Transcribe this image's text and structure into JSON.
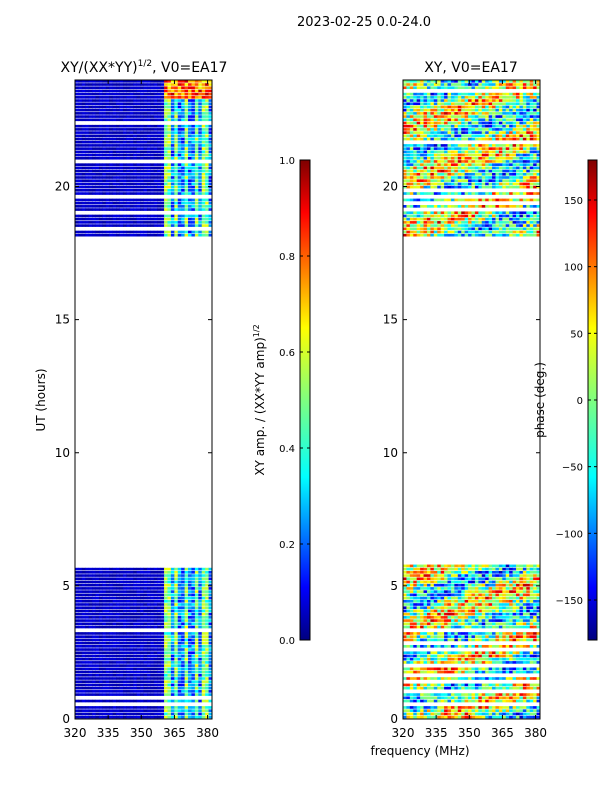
{
  "figure_title": "2023-02-25 0.0-24.0",
  "colors": {
    "jet": [
      "#00007f",
      "#0000ff",
      "#007fff",
      "#00ffff",
      "#7fff7f",
      "#ffff00",
      "#ff7f00",
      "#ff0000",
      "#7f0000"
    ]
  },
  "chart_data": [
    {
      "type": "heatmap",
      "title_main": "XY/(XX*YY)",
      "title_sup": "1/2",
      "title_rest": ", V0=EA17",
      "xlabel": "",
      "ylabel": "UT (hours)",
      "xlim": [
        320,
        382
      ],
      "ylim": [
        0,
        24
      ],
      "xticks": [
        "320",
        "335",
        "350",
        "365",
        "380"
      ],
      "xtick_values": [
        320,
        335,
        350,
        365,
        380
      ],
      "yticks": [
        "0",
        "5",
        "10",
        "15",
        "20"
      ],
      "ytick_values": [
        0,
        5,
        10,
        15,
        20
      ],
      "data_ranges_ut": [
        [
          0,
          5.8
        ],
        [
          18.1,
          24
        ]
      ],
      "colorbar": {
        "label_main": "XY amp. / (XX*YY amp)",
        "label_sup": "1/2",
        "range": [
          0,
          1
        ],
        "ticks": [
          "0.0",
          "0.2",
          "0.4",
          "0.6",
          "0.8",
          "1.0"
        ],
        "tick_values": [
          0,
          0.2,
          0.4,
          0.6,
          0.8,
          1.0
        ]
      }
    },
    {
      "type": "heatmap",
      "title": "XY, V0=EA17",
      "xlabel": "frequency (MHz)",
      "ylabel": "",
      "xlim": [
        320,
        382
      ],
      "ylim": [
        0,
        24
      ],
      "xticks": [
        "320",
        "335",
        "350",
        "365",
        "380"
      ],
      "xtick_values": [
        320,
        335,
        350,
        365,
        380
      ],
      "yticks": [
        "0",
        "5",
        "10",
        "15",
        "20"
      ],
      "ytick_values": [
        0,
        5,
        10,
        15,
        20
      ],
      "data_ranges_ut": [
        [
          0,
          5.8
        ],
        [
          18.1,
          24
        ]
      ],
      "colorbar": {
        "label": "phase (deg.)",
        "range": [
          -180,
          180
        ],
        "ticks": [
          "−150",
          "−100",
          "−50",
          "0",
          "50",
          "100",
          "150"
        ],
        "tick_values": [
          -150,
          -100,
          -50,
          0,
          50,
          100,
          150
        ]
      }
    }
  ]
}
